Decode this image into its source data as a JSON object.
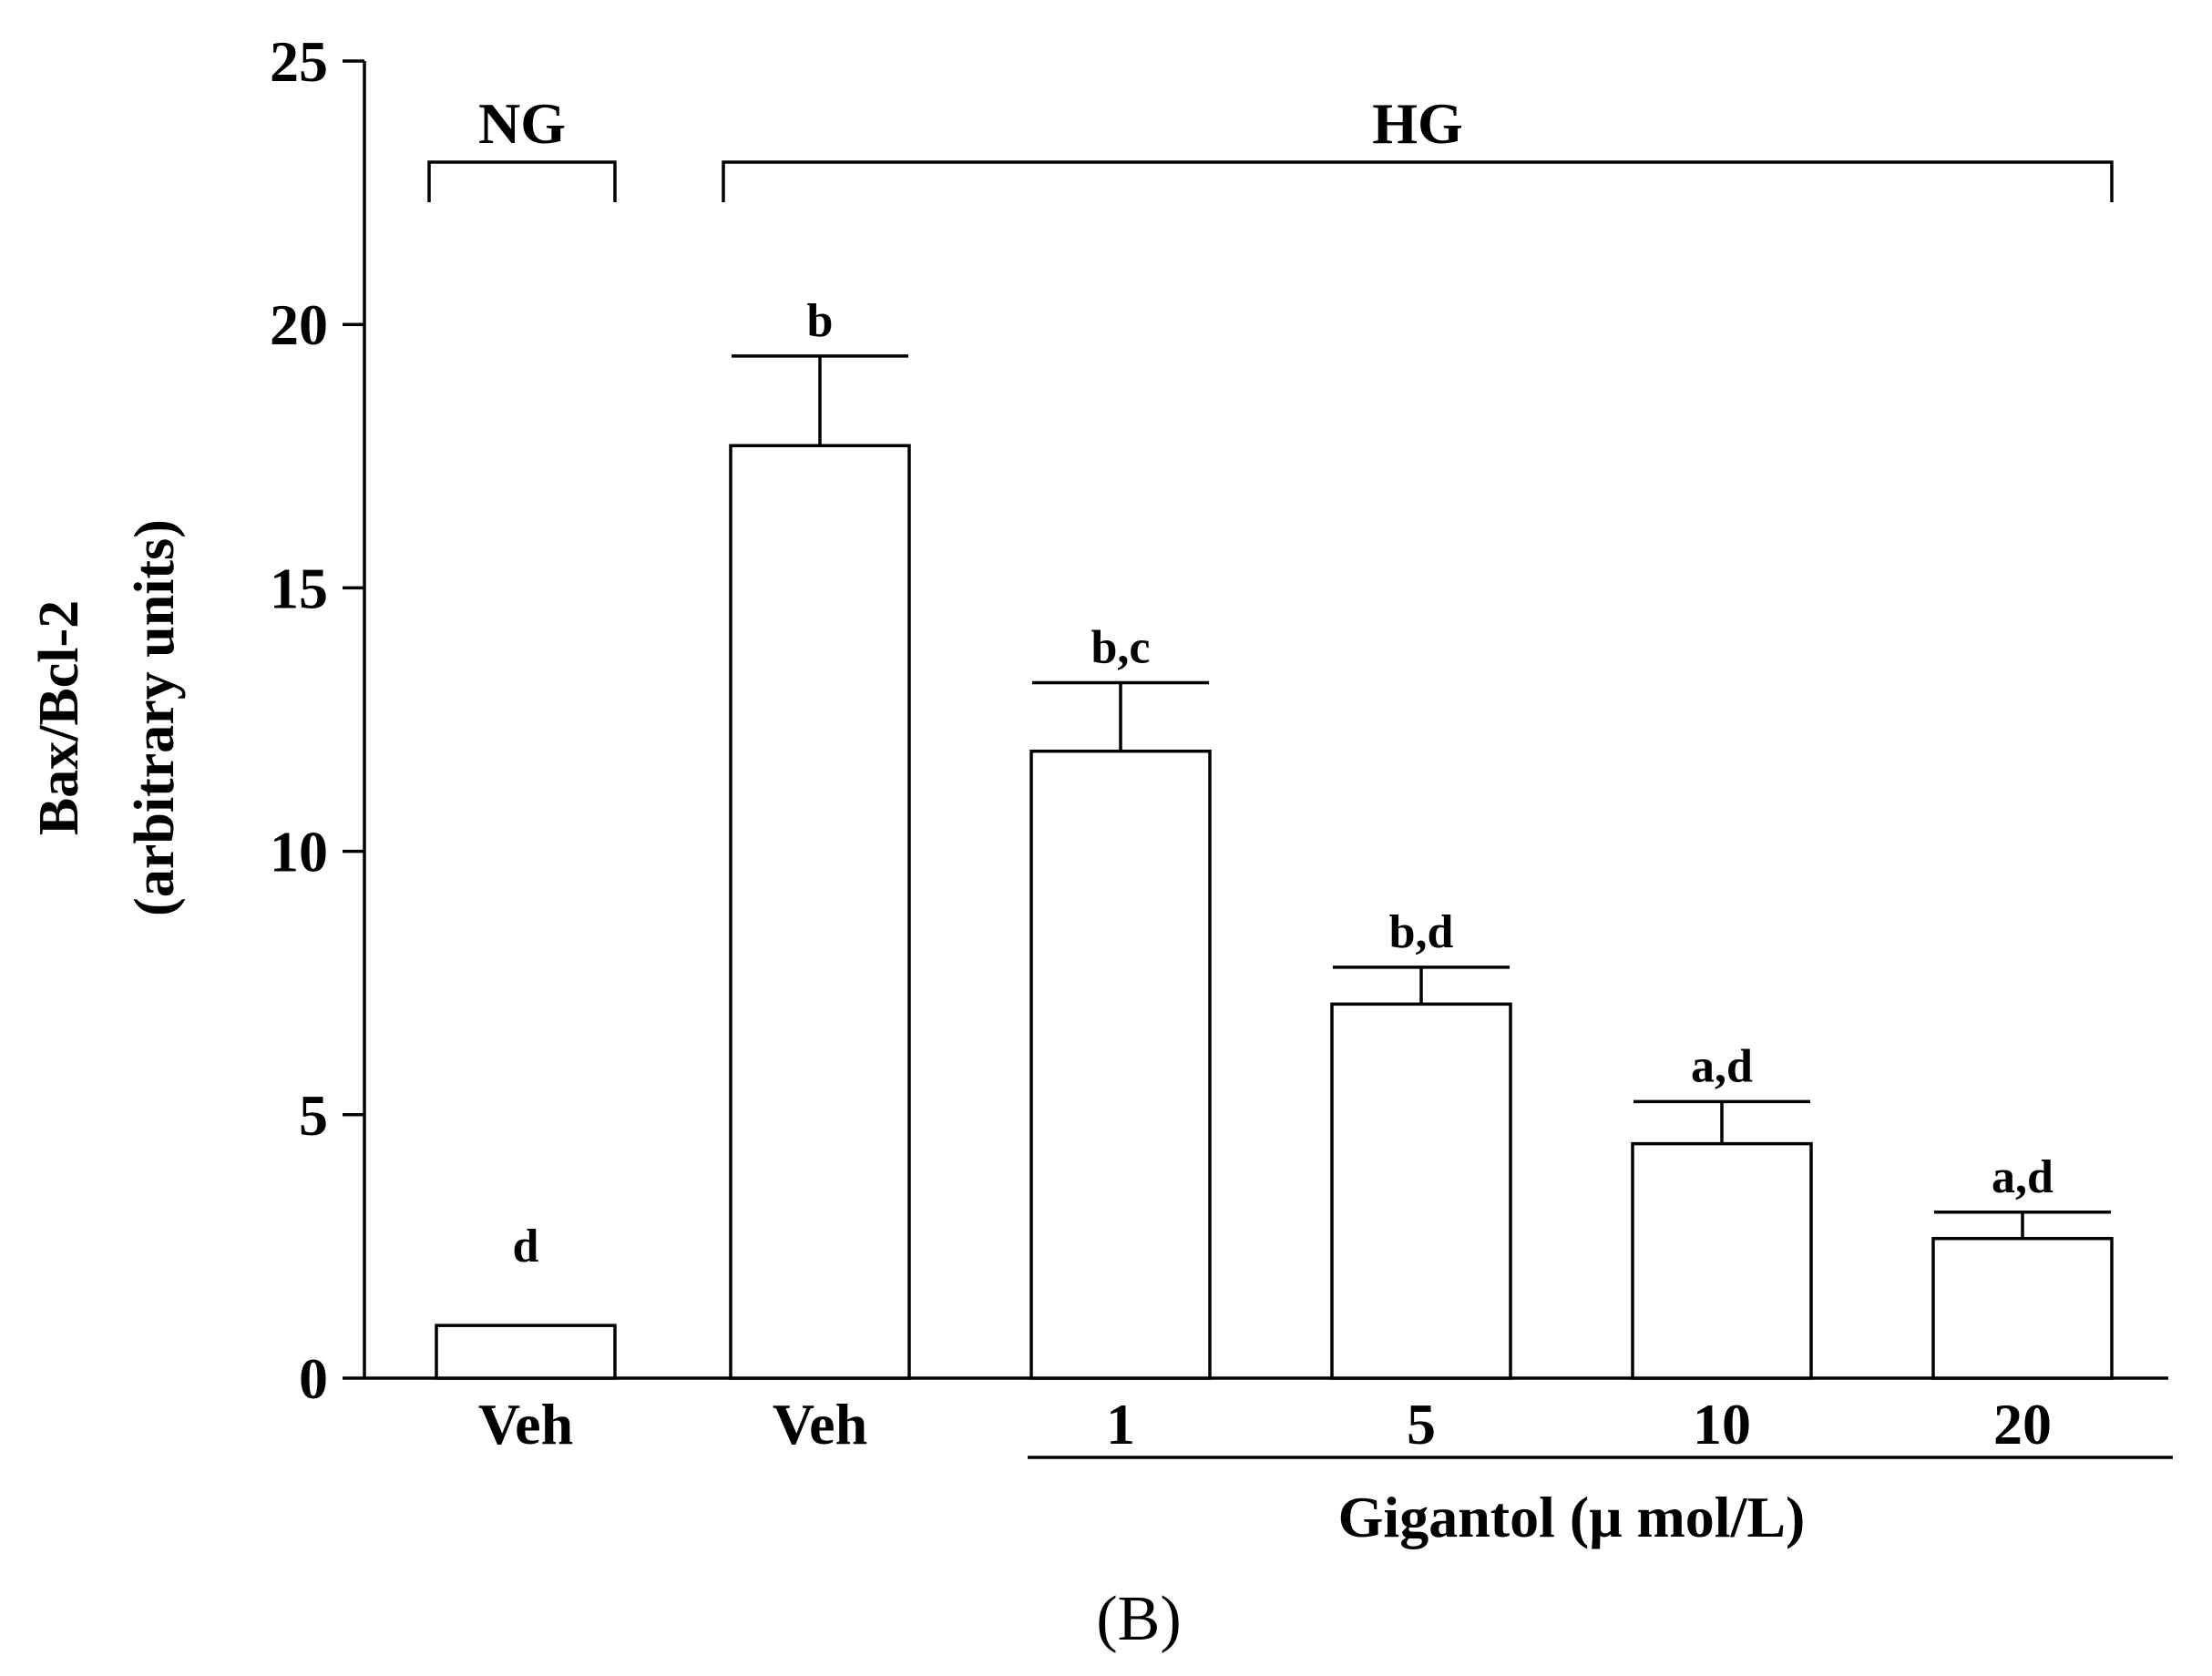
{
  "chart_data": {
    "type": "bar",
    "categories": [
      "Veh",
      "Veh",
      "1",
      "5",
      "10",
      "20"
    ],
    "values": [
      1.0,
      17.7,
      11.9,
      7.1,
      4.45,
      2.65
    ],
    "errors": [
      0,
      1.7,
      1.3,
      0.7,
      0.8,
      0.5
    ],
    "significance": [
      "d",
      "b",
      "b,c",
      "b,d",
      "a,d",
      "a,d"
    ],
    "groups": [
      {
        "label": "NG",
        "categories": [
          0
        ]
      },
      {
        "label": "HG",
        "categories": [
          1,
          2,
          3,
          4,
          5
        ]
      }
    ],
    "secondary_xlabel": "Gigantol (μ mol/L)",
    "ylabel_line1": "Bax/Bcl-2",
    "ylabel_line2": "(arbitrary units)",
    "ylim": [
      0,
      25
    ],
    "yticks": [
      "0",
      "5",
      "10",
      "15",
      "20",
      "25"
    ],
    "panel_label": "(B)",
    "grid": false,
    "bar_fill": "#ffffff",
    "bar_stroke": "#000000"
  }
}
